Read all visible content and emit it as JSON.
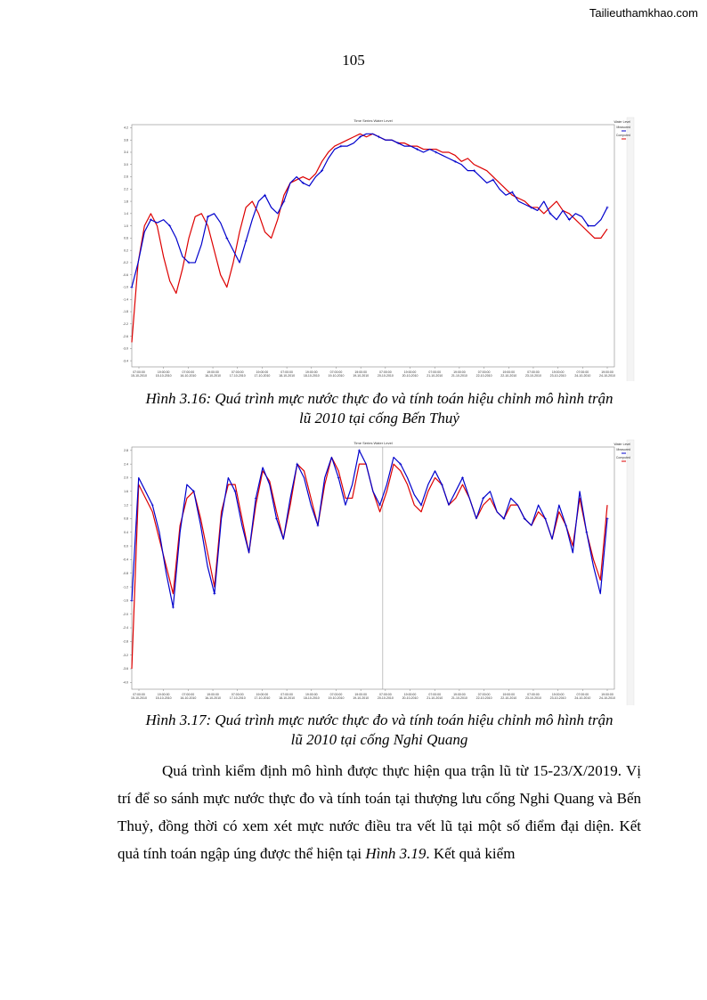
{
  "header": {
    "watermark": "Tailieuthamkhao.com",
    "page_number": "105"
  },
  "colors": {
    "measured": "#0000cc",
    "computed": "#dd0000"
  },
  "figures": [
    {
      "id": "fig-3-16",
      "panel_title": "Time Series Water Level",
      "caption_line1": "Hình 3.16: Quá trình mực nước thực đo và tính toán hiệu chỉnh mô hình trận",
      "caption_line2": "lũ 2010 tại cống Bến Thuỷ",
      "chart_data": {
        "type": "line",
        "xlabel": "",
        "ylabel": "",
        "ylim": [
          -3.6,
          4.3
        ],
        "x_ticks": [
          {
            "time": "07:00:00",
            "date": "15-10-2010"
          },
          {
            "time": "19:00:00",
            "date": "15-10-2010"
          },
          {
            "time": "07:00:00",
            "date": "16-10-2010"
          },
          {
            "time": "19:00:00",
            "date": "16-10-2010"
          },
          {
            "time": "07:00:00",
            "date": "17-10-2010"
          },
          {
            "time": "19:00:00",
            "date": "17-10-2010"
          },
          {
            "time": "07:00:00",
            "date": "18-10-2010"
          },
          {
            "time": "19:00:00",
            "date": "18-10-2010"
          },
          {
            "time": "07:00:00",
            "date": "19-10-2010"
          },
          {
            "time": "19:00:00",
            "date": "19-10-2010"
          },
          {
            "time": "07:00:00",
            "date": "20-10-2010"
          },
          {
            "time": "19:00:00",
            "date": "20-10-2010"
          },
          {
            "time": "07:00:00",
            "date": "21-10-2010"
          },
          {
            "time": "19:00:00",
            "date": "21-10-2010"
          },
          {
            "time": "07:00:00",
            "date": "22-10-2010"
          },
          {
            "time": "19:00:00",
            "date": "22-10-2010"
          },
          {
            "time": "07:00:00",
            "date": "23-10-2010"
          },
          {
            "time": "19:00:00",
            "date": "23-10-2010"
          },
          {
            "time": "07:00:00",
            "date": "24-10-2010"
          },
          {
            "time": "19:00:00",
            "date": "24-10-2010"
          }
        ],
        "y_ticks": [
          4.2,
          3.8,
          3.4,
          3.0,
          2.6,
          2.2,
          1.8,
          1.4,
          1.0,
          0.6,
          0.2,
          -0.2,
          -0.6,
          -1.0,
          -1.4,
          -1.8,
          -2.2,
          -2.6,
          -3.0,
          -3.4
        ],
        "legend": [
          "Water Level",
          "Computed",
          "Measured"
        ],
        "series": [
          {
            "name": "Measured",
            "color": "#0000cc",
            "marker": "plus",
            "values": [
              -1.0,
              -0.2,
              0.8,
              1.2,
              1.1,
              1.2,
              1.0,
              0.6,
              0.0,
              -0.2,
              -0.2,
              0.4,
              1.3,
              1.4,
              1.1,
              0.6,
              0.2,
              -0.2,
              0.5,
              1.2,
              1.8,
              2.0,
              1.6,
              1.4,
              1.8,
              2.4,
              2.6,
              2.4,
              2.3,
              2.6,
              2.8,
              3.2,
              3.5,
              3.6,
              3.6,
              3.7,
              3.9,
              4.0,
              4.0,
              3.9,
              3.8,
              3.8,
              3.7,
              3.6,
              3.6,
              3.5,
              3.4,
              3.5,
              3.4,
              3.3,
              3.2,
              3.1,
              3.0,
              2.8,
              2.8,
              2.6,
              2.4,
              2.5,
              2.2,
              2.0,
              2.1,
              1.8,
              1.7,
              1.6,
              1.5,
              1.8,
              1.4,
              1.2,
              1.5,
              1.2,
              1.4,
              1.3,
              1.0,
              1.0,
              1.2,
              1.6
            ]
          },
          {
            "name": "Computed",
            "color": "#dd0000",
            "marker": "none",
            "values": [
              -2.8,
              -0.2,
              1.0,
              1.4,
              1.0,
              0.0,
              -0.8,
              -1.2,
              -0.4,
              0.6,
              1.3,
              1.4,
              1.0,
              0.2,
              -0.6,
              -1.0,
              -0.2,
              0.8,
              1.6,
              1.8,
              1.4,
              0.8,
              0.6,
              1.2,
              2.0,
              2.4,
              2.5,
              2.6,
              2.5,
              2.7,
              3.1,
              3.4,
              3.6,
              3.7,
              3.8,
              3.9,
              4.0,
              3.9,
              4.0,
              3.9,
              3.8,
              3.8,
              3.7,
              3.7,
              3.6,
              3.6,
              3.5,
              3.5,
              3.5,
              3.4,
              3.4,
              3.3,
              3.1,
              3.2,
              3.0,
              2.9,
              2.8,
              2.6,
              2.4,
              2.2,
              2.0,
              1.9,
              1.8,
              1.6,
              1.6,
              1.4,
              1.6,
              1.8,
              1.5,
              1.4,
              1.2,
              1.0,
              0.8,
              0.6,
              0.6,
              0.9
            ]
          }
        ]
      }
    },
    {
      "id": "fig-3-17",
      "panel_title": "Time Series Water Level",
      "caption_line1": "Hình 3.17: Quá trình mực nước thực đo và tính toán hiệu chỉnh mô hình trận",
      "caption_line2": "lũ 2010 tại cống Nghi Quang",
      "chart_data": {
        "type": "line",
        "xlabel": "",
        "ylabel": "",
        "ylim": [
          -4.2,
          2.9
        ],
        "x_ticks": [
          {
            "time": "07:00:00",
            "date": "15-10-2010"
          },
          {
            "time": "19:00:00",
            "date": "15-10-2010"
          },
          {
            "time": "07:00:00",
            "date": "16-10-2010"
          },
          {
            "time": "19:00:00",
            "date": "16-10-2010"
          },
          {
            "time": "07:00:00",
            "date": "17-10-2010"
          },
          {
            "time": "19:00:00",
            "date": "17-10-2010"
          },
          {
            "time": "07:00:00",
            "date": "18-10-2010"
          },
          {
            "time": "19:00:00",
            "date": "18-10-2010"
          },
          {
            "time": "07:00:00",
            "date": "19-10-2010"
          },
          {
            "time": "19:00:00",
            "date": "19-10-2010"
          },
          {
            "time": "07:00:00",
            "date": "20-10-2010"
          },
          {
            "time": "19:00:00",
            "date": "20-10-2010"
          },
          {
            "time": "07:00:00",
            "date": "21-10-2010"
          },
          {
            "time": "19:00:00",
            "date": "21-10-2010"
          },
          {
            "time": "07:00:00",
            "date": "22-10-2010"
          },
          {
            "time": "19:00:00",
            "date": "22-10-2010"
          },
          {
            "time": "07:00:00",
            "date": "23-10-2010"
          },
          {
            "time": "19:00:00",
            "date": "23-10-2010"
          },
          {
            "time": "07:00:00",
            "date": "24-10-2010"
          },
          {
            "time": "19:00:00",
            "date": "24-10-2010"
          }
        ],
        "y_ticks": [
          2.8,
          2.4,
          2.0,
          1.6,
          1.2,
          0.8,
          0.4,
          0.0,
          -0.4,
          -0.8,
          -1.2,
          -1.6,
          -2.0,
          -2.4,
          -2.8,
          -3.2,
          -3.6,
          -4.0
        ],
        "legend": [
          "Water Level",
          "Computed",
          "Measured"
        ],
        "series": [
          {
            "name": "Measured",
            "color": "#0000cc",
            "marker": "plus",
            "values": [
              -1.6,
              2.0,
              1.6,
              1.2,
              0.4,
              -0.8,
              -1.8,
              0.4,
              1.8,
              1.6,
              0.6,
              -0.6,
              -1.4,
              0.8,
              2.0,
              1.6,
              0.6,
              -0.2,
              1.4,
              2.3,
              1.8,
              0.8,
              0.2,
              1.4,
              2.4,
              2.0,
              1.2,
              0.6,
              2.0,
              2.6,
              2.0,
              1.2,
              1.8,
              2.8,
              2.4,
              1.6,
              1.2,
              1.8,
              2.6,
              2.4,
              2.0,
              1.5,
              1.2,
              1.8,
              2.2,
              1.8,
              1.2,
              1.6,
              2.0,
              1.4,
              0.8,
              1.4,
              1.6,
              1.0,
              0.8,
              1.4,
              1.2,
              0.8,
              0.6,
              1.2,
              0.8,
              0.2,
              1.2,
              0.6,
              -0.2,
              1.6,
              0.4,
              -0.6,
              -1.4,
              0.8
            ]
          },
          {
            "name": "Computed",
            "color": "#dd0000",
            "marker": "none",
            "values": [
              -3.6,
              1.8,
              1.4,
              1.0,
              0.2,
              -0.6,
              -1.4,
              0.6,
              1.4,
              1.6,
              0.8,
              -0.2,
              -1.2,
              1.0,
              1.8,
              1.8,
              0.8,
              -0.2,
              1.2,
              2.2,
              1.9,
              1.0,
              0.2,
              1.2,
              2.4,
              2.2,
              1.4,
              0.6,
              1.8,
              2.6,
              2.2,
              1.4,
              1.4,
              2.4,
              2.4,
              1.6,
              1.0,
              1.6,
              2.4,
              2.2,
              1.8,
              1.2,
              1.0,
              1.6,
              2.0,
              1.8,
              1.2,
              1.4,
              1.8,
              1.4,
              0.8,
              1.2,
              1.4,
              1.0,
              0.8,
              1.2,
              1.2,
              0.8,
              0.6,
              1.0,
              0.8,
              0.2,
              1.0,
              0.6,
              0.0,
              1.4,
              0.4,
              -0.4,
              -1.0,
              1.2
            ]
          }
        ]
      }
    }
  ],
  "paragraph": {
    "text_before_italic": "Quá trình kiểm định mô hình được thực hiện qua trận lũ từ 15-23/X/2019. Vị trí để so sánh mực nước thực đo và tính toán tại thượng lưu cống Nghi Quang và Bến Thuỷ, đồng thời có xem xét mực nước điều tra vết lũ tại một số điểm đại diện. Kết quả tính toán ngập úng được thể hiện tại ",
    "italic": "Hình 3.19",
    "text_after_italic": ". Kết quả kiểm"
  }
}
